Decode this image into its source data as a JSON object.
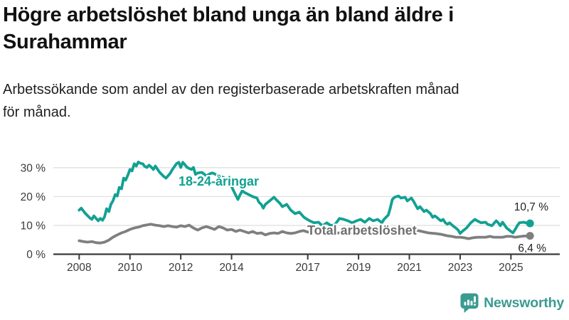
{
  "header": {
    "title_lines": [
      "Högre arbetslöshet bland unga än bland äldre i",
      "Surahammar"
    ],
    "subtitle_lines": [
      "Arbetssökande som andel av den registerbaserade arbetskraften månad",
      "för månad."
    ]
  },
  "chart_data": {
    "type": "line",
    "title": "Högre arbetslöshet bland unga än bland äldre i Surahammar",
    "subtitle": "Arbetssökande som andel av den registerbaserade arbetskraften månad för månad.",
    "unit": "%",
    "grid": true,
    "legend_position": "inline-labels-on-chart",
    "x_axis": {
      "ticks": [
        2008,
        2010,
        2012,
        2014,
        2017,
        2019,
        2021,
        2023,
        2025
      ],
      "range": [
        2007.0,
        2026.9
      ]
    },
    "y_axis": {
      "tick_values": [
        0,
        10,
        20,
        30
      ],
      "tick_labels": [
        "0 %",
        "10 %",
        "20 %",
        "30 %"
      ],
      "range": [
        0,
        34
      ]
    },
    "series": [
      {
        "name": "18-24-åringar",
        "color": "#11a192",
        "end_label": "10,7 %",
        "end_value": 10.7,
        "points": [
          [
            2008.0,
            15.3
          ],
          [
            2008.08,
            16.0
          ],
          [
            2008.25,
            14.1
          ],
          [
            2008.42,
            12.6
          ],
          [
            2008.5,
            12.1
          ],
          [
            2008.58,
            13.3
          ],
          [
            2008.75,
            11.6
          ],
          [
            2008.83,
            12.4
          ],
          [
            2008.92,
            11.8
          ],
          [
            2009.0,
            13.0
          ],
          [
            2009.08,
            15.8
          ],
          [
            2009.17,
            14.8
          ],
          [
            2009.25,
            17.3
          ],
          [
            2009.33,
            18.5
          ],
          [
            2009.42,
            20.7
          ],
          [
            2009.5,
            20.2
          ],
          [
            2009.58,
            23.2
          ],
          [
            2009.67,
            22.7
          ],
          [
            2009.75,
            26.4
          ],
          [
            2009.83,
            25.7
          ],
          [
            2009.92,
            27.5
          ],
          [
            2010.0,
            29.4
          ],
          [
            2010.08,
            28.9
          ],
          [
            2010.17,
            31.4
          ],
          [
            2010.25,
            30.6
          ],
          [
            2010.33,
            32.0
          ],
          [
            2010.42,
            31.5
          ],
          [
            2010.5,
            31.4
          ],
          [
            2010.58,
            30.5
          ],
          [
            2010.67,
            30.1
          ],
          [
            2010.75,
            30.9
          ],
          [
            2010.83,
            30.3
          ],
          [
            2010.92,
            29.4
          ],
          [
            2011.0,
            30.6
          ],
          [
            2011.17,
            28.4
          ],
          [
            2011.33,
            27.0
          ],
          [
            2011.42,
            26.4
          ],
          [
            2011.58,
            28.0
          ],
          [
            2011.67,
            29.4
          ],
          [
            2011.83,
            31.4
          ],
          [
            2011.92,
            31.9
          ],
          [
            2012.0,
            30.1
          ],
          [
            2012.08,
            31.9
          ],
          [
            2012.17,
            31.0
          ],
          [
            2012.25,
            30.1
          ],
          [
            2012.42,
            29.4
          ],
          [
            2012.5,
            30.1
          ],
          [
            2012.58,
            27.7
          ],
          [
            2012.67,
            28.2
          ],
          [
            2012.83,
            28.4
          ],
          [
            2012.92,
            27.8
          ],
          [
            2013.0,
            27.2
          ],
          [
            2013.17,
            28.0
          ],
          [
            2013.25,
            28.2
          ],
          [
            2013.42,
            27.5
          ],
          [
            2013.58,
            27.0
          ],
          [
            2013.75,
            26.3
          ],
          [
            2013.92,
            25.0
          ],
          [
            2014.0,
            23.5
          ],
          [
            2014.08,
            22.0
          ],
          [
            2014.25,
            19.0
          ],
          [
            2014.33,
            20.5
          ],
          [
            2014.42,
            22.0
          ],
          [
            2014.5,
            21.5
          ],
          [
            2014.67,
            20.7
          ],
          [
            2014.83,
            20.0
          ],
          [
            2015.0,
            19.5
          ],
          [
            2015.08,
            18.0
          ],
          [
            2015.17,
            17.3
          ],
          [
            2015.25,
            16.0
          ],
          [
            2015.33,
            17.3
          ],
          [
            2015.5,
            18.5
          ],
          [
            2015.67,
            19.8
          ],
          [
            2015.75,
            19.0
          ],
          [
            2015.92,
            17.5
          ],
          [
            2016.0,
            16.5
          ],
          [
            2016.17,
            17.3
          ],
          [
            2016.33,
            15.3
          ],
          [
            2016.5,
            14.1
          ],
          [
            2016.67,
            14.6
          ],
          [
            2016.83,
            13.0
          ],
          [
            2016.92,
            12.4
          ],
          [
            2017.08,
            11.6
          ],
          [
            2017.25,
            10.9
          ],
          [
            2017.42,
            11.1
          ],
          [
            2017.58,
            9.9
          ],
          [
            2017.75,
            10.9
          ],
          [
            2017.92,
            9.9
          ],
          [
            2018.08,
            10.4
          ],
          [
            2018.25,
            12.4
          ],
          [
            2018.42,
            12.1
          ],
          [
            2018.58,
            11.6
          ],
          [
            2018.75,
            10.9
          ],
          [
            2018.92,
            11.6
          ],
          [
            2019.08,
            12.1
          ],
          [
            2019.25,
            11.1
          ],
          [
            2019.42,
            12.4
          ],
          [
            2019.58,
            11.6
          ],
          [
            2019.75,
            12.1
          ],
          [
            2019.92,
            10.9
          ],
          [
            2020.0,
            12.1
          ],
          [
            2020.17,
            13.6
          ],
          [
            2020.25,
            16.0
          ],
          [
            2020.33,
            19.0
          ],
          [
            2020.42,
            19.8
          ],
          [
            2020.58,
            20.2
          ],
          [
            2020.67,
            19.5
          ],
          [
            2020.83,
            19.8
          ],
          [
            2020.92,
            18.5
          ],
          [
            2021.0,
            19.0
          ],
          [
            2021.08,
            19.5
          ],
          [
            2021.17,
            18.3
          ],
          [
            2021.25,
            17.0
          ],
          [
            2021.33,
            15.8
          ],
          [
            2021.42,
            16.5
          ],
          [
            2021.58,
            14.8
          ],
          [
            2021.67,
            15.3
          ],
          [
            2021.83,
            14.1
          ],
          [
            2021.92,
            12.8
          ],
          [
            2022.0,
            13.3
          ],
          [
            2022.08,
            12.8
          ],
          [
            2022.17,
            12.1
          ],
          [
            2022.25,
            11.6
          ],
          [
            2022.33,
            12.1
          ],
          [
            2022.42,
            10.9
          ],
          [
            2022.5,
            10.4
          ],
          [
            2022.58,
            10.9
          ],
          [
            2022.75,
            9.6
          ],
          [
            2022.83,
            9.1
          ],
          [
            2022.92,
            8.4
          ],
          [
            2023.0,
            7.2
          ],
          [
            2023.08,
            7.9
          ],
          [
            2023.25,
            9.1
          ],
          [
            2023.42,
            10.9
          ],
          [
            2023.58,
            12.1
          ],
          [
            2023.67,
            11.6
          ],
          [
            2023.83,
            10.9
          ],
          [
            2024.0,
            11.1
          ],
          [
            2024.08,
            10.4
          ],
          [
            2024.25,
            9.9
          ],
          [
            2024.42,
            11.6
          ],
          [
            2024.5,
            10.9
          ],
          [
            2024.58,
            9.9
          ],
          [
            2024.67,
            11.1
          ],
          [
            2024.83,
            9.1
          ],
          [
            2025.0,
            7.9
          ],
          [
            2025.08,
            7.4
          ],
          [
            2025.17,
            8.6
          ],
          [
            2025.25,
            9.9
          ],
          [
            2025.33,
            10.9
          ],
          [
            2025.5,
            11.1
          ],
          [
            2025.58,
            10.9
          ],
          [
            2025.75,
            10.7
          ]
        ]
      },
      {
        "name": "Total arbetslöshet",
        "color": "#7f7f7f",
        "label_color": "#6f6f6f",
        "end_label": "6,4 %",
        "end_value": 6.4,
        "points": [
          [
            2008.0,
            4.7
          ],
          [
            2008.17,
            4.4
          ],
          [
            2008.33,
            4.2
          ],
          [
            2008.5,
            4.4
          ],
          [
            2008.67,
            4.0
          ],
          [
            2008.83,
            3.9
          ],
          [
            2009.0,
            4.2
          ],
          [
            2009.17,
            4.9
          ],
          [
            2009.33,
            5.9
          ],
          [
            2009.5,
            6.7
          ],
          [
            2009.67,
            7.4
          ],
          [
            2009.83,
            7.9
          ],
          [
            2010.0,
            8.6
          ],
          [
            2010.17,
            9.1
          ],
          [
            2010.33,
            9.4
          ],
          [
            2010.5,
            9.9
          ],
          [
            2010.67,
            10.2
          ],
          [
            2010.83,
            10.4
          ],
          [
            2011.0,
            10.1
          ],
          [
            2011.17,
            9.9
          ],
          [
            2011.33,
            9.6
          ],
          [
            2011.5,
            9.9
          ],
          [
            2011.67,
            9.6
          ],
          [
            2011.83,
            9.4
          ],
          [
            2012.0,
            9.9
          ],
          [
            2012.17,
            9.6
          ],
          [
            2012.33,
            10.1
          ],
          [
            2012.5,
            9.1
          ],
          [
            2012.67,
            8.4
          ],
          [
            2012.83,
            9.1
          ],
          [
            2013.0,
            9.6
          ],
          [
            2013.17,
            9.1
          ],
          [
            2013.33,
            8.6
          ],
          [
            2013.5,
            9.6
          ],
          [
            2013.67,
            9.1
          ],
          [
            2013.83,
            8.4
          ],
          [
            2014.0,
            8.6
          ],
          [
            2014.17,
            7.9
          ],
          [
            2014.33,
            8.4
          ],
          [
            2014.5,
            7.9
          ],
          [
            2014.67,
            7.4
          ],
          [
            2014.83,
            7.9
          ],
          [
            2015.0,
            7.2
          ],
          [
            2015.17,
            7.4
          ],
          [
            2015.33,
            6.7
          ],
          [
            2015.5,
            7.2
          ],
          [
            2015.67,
            7.4
          ],
          [
            2015.83,
            7.2
          ],
          [
            2016.0,
            7.9
          ],
          [
            2016.17,
            7.4
          ],
          [
            2016.33,
            7.2
          ],
          [
            2016.5,
            7.4
          ],
          [
            2016.67,
            7.9
          ],
          [
            2016.83,
            8.2
          ],
          [
            2017.0,
            7.7
          ],
          [
            2017.17,
            7.4
          ],
          [
            2017.33,
            7.2
          ],
          [
            2017.5,
            7.4
          ],
          [
            2017.67,
            7.2
          ],
          [
            2017.83,
            7.4
          ],
          [
            2018.0,
            7.2
          ],
          [
            2018.25,
            7.4
          ],
          [
            2018.5,
            7.2
          ],
          [
            2018.75,
            7.4
          ],
          [
            2019.0,
            7.6
          ],
          [
            2019.25,
            7.4
          ],
          [
            2019.5,
            7.7
          ],
          [
            2019.75,
            7.9
          ],
          [
            2020.0,
            8.1
          ],
          [
            2020.25,
            8.9
          ],
          [
            2020.5,
            9.1
          ],
          [
            2020.75,
            8.9
          ],
          [
            2021.0,
            8.6
          ],
          [
            2021.25,
            8.4
          ],
          [
            2021.5,
            7.9
          ],
          [
            2021.75,
            7.4
          ],
          [
            2022.0,
            7.2
          ],
          [
            2022.25,
            6.9
          ],
          [
            2022.5,
            6.4
          ],
          [
            2022.67,
            6.2
          ],
          [
            2022.83,
            5.9
          ],
          [
            2023.0,
            5.9
          ],
          [
            2023.17,
            5.7
          ],
          [
            2023.33,
            5.4
          ],
          [
            2023.5,
            5.7
          ],
          [
            2023.67,
            5.9
          ],
          [
            2023.83,
            5.9
          ],
          [
            2024.0,
            5.9
          ],
          [
            2024.17,
            6.2
          ],
          [
            2024.33,
            5.9
          ],
          [
            2024.5,
            5.9
          ],
          [
            2024.67,
            5.9
          ],
          [
            2024.83,
            6.2
          ],
          [
            2025.0,
            6.2
          ],
          [
            2025.17,
            5.9
          ],
          [
            2025.33,
            6.1
          ],
          [
            2025.5,
            6.3
          ],
          [
            2025.75,
            6.4
          ]
        ]
      }
    ]
  },
  "footer": {
    "brand": "Newsworthy",
    "logo_icon": "bar-chart-speech-bubble-icon",
    "brand_color": "#3a9b90"
  },
  "colors": {
    "teal": "#11a192",
    "gray_line": "#7f7f7f",
    "gray_label": "#6f6f6f",
    "axis": "#3a3a3a",
    "grid": "#dedede",
    "title": "#111111",
    "value_label": "#222222",
    "background": "#ffffff"
  }
}
